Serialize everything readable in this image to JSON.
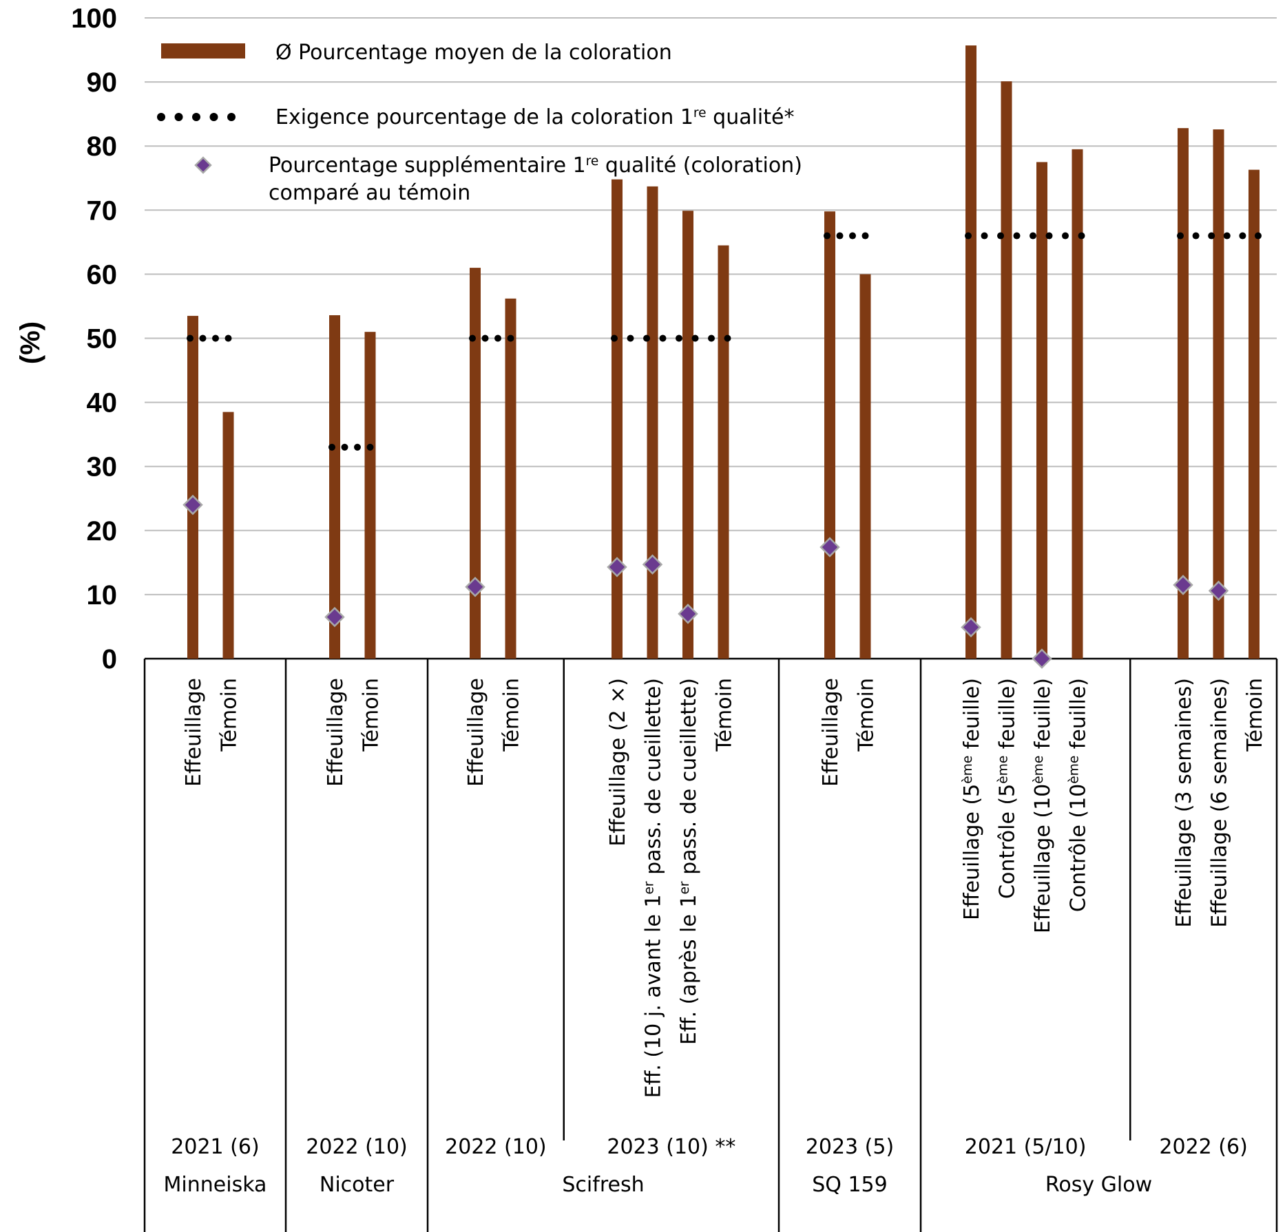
{
  "chart_data": {
    "type": "bar",
    "ylabel": "(%)",
    "ylim": [
      0,
      100
    ],
    "yticks": [
      0,
      10,
      20,
      30,
      40,
      50,
      60,
      70,
      80,
      90,
      100
    ],
    "grid": true,
    "legend_position": "top-left",
    "colors": {
      "bar": "#7f3a13",
      "marker": "#6a3a8f",
      "marker_edge": "#a8a8a8",
      "dots": "#000000",
      "grid": "#bdbdbd"
    },
    "legend": [
      {
        "kind": "bar",
        "lines": [
          "Ø Pourcentage moyen de la coloration"
        ]
      },
      {
        "kind": "dots",
        "lines": [
          "Exigence pourcentage de la coloration 1re qualité*"
        ]
      },
      {
        "kind": "marker",
        "lines": [
          "Pourcentage supplémentaire 1re qualité (coloration)",
          "comparé au témoin"
        ]
      }
    ],
    "variety_groups": [
      {
        "variety": "Minneiska",
        "trials": [
          {
            "label": "2021 (6)",
            "requirement": 50,
            "bars": [
              {
                "label": "Effeuillage",
                "value": 53.5,
                "extra": 24
              },
              {
                "label": "Témoin",
                "value": 38.5
              }
            ]
          }
        ]
      },
      {
        "variety": "Nicoter",
        "trials": [
          {
            "label": "2022 (10)",
            "requirement": 33,
            "bars": [
              {
                "label": "Effeuillage",
                "value": 53.6,
                "extra": 6.5
              },
              {
                "label": "Témoin",
                "value": 51
              }
            ]
          }
        ]
      },
      {
        "variety": "Scifresh",
        "trials": [
          {
            "label": "2022 (10)",
            "requirement": 50,
            "bars": [
              {
                "label": "Effeuillage",
                "value": 61,
                "extra": 11.2
              },
              {
                "label": "Témoin",
                "value": 56.2
              }
            ]
          },
          {
            "label": "2023 (10) **",
            "requirement": 50,
            "bars": [
              {
                "label": "Effeuillage (2 ×)",
                "value": 74.8,
                "extra": 14.3
              },
              {
                "label": "Eff. (10 j. avant le 1er pass. de cueillette)",
                "value": 73.7,
                "extra": 14.7
              },
              {
                "label": "Eff. (après le 1er pass. de cueillette)",
                "value": 69.9,
                "extra": 7
              },
              {
                "label": "Témoin",
                "value": 64.5
              }
            ]
          }
        ]
      },
      {
        "variety": "SQ 159",
        "trials": [
          {
            "label": "2023 (5)",
            "requirement": 66,
            "bars": [
              {
                "label": "Effeuillage",
                "value": 69.8,
                "extra": 17.4
              },
              {
                "label": "Témoin",
                "value": 60
              }
            ]
          }
        ]
      },
      {
        "variety": "Rosy Glow",
        "trials": [
          {
            "label": "2021 (5/10)",
            "requirement": 66,
            "bars": [
              {
                "label": "Effeuillage (5ème feuille)",
                "value": 95.7,
                "extra": 4.9
              },
              {
                "label": "Contrôle (5ème feuille)",
                "value": 90.1
              },
              {
                "label": "Effeuillage (10ème feuille)",
                "value": 77.5,
                "extra": 0
              },
              {
                "label": "Contrôle (10ème feuille)",
                "value": 79.5
              }
            ]
          },
          {
            "label": "2022 (6)",
            "requirement": 66,
            "bars": [
              {
                "label": "Effeuillage (3 semaines)",
                "value": 82.8,
                "extra": 11.5
              },
              {
                "label": "Effeuillage (6 semaines)",
                "value": 82.6,
                "extra": 10.6
              },
              {
                "label": "Témoin",
                "value": 76.3
              }
            ]
          }
        ]
      }
    ]
  }
}
